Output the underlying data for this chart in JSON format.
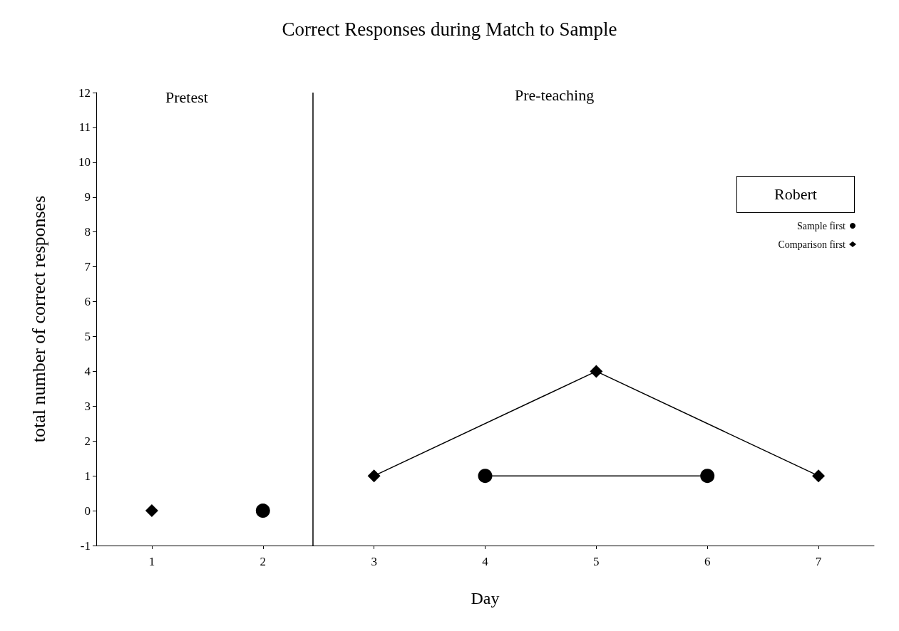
{
  "chart_data": {
    "type": "line",
    "title": "Correct Responses during Match to Sample",
    "xlabel": "Day",
    "ylabel": "total number of correct responses",
    "annotations": [
      "Pretest",
      "Pre-teaching",
      "Robert"
    ],
    "series": [
      {
        "name": "Sample first",
        "color": "#000000",
        "marker": "circle",
        "x": [
          2,
          3,
          4,
          6
        ],
        "values": [
          0,
          null,
          1,
          1
        ]
      },
      {
        "name": "Comparison first",
        "color": "#000000",
        "marker": "diamond",
        "x": [
          1,
          2,
          3,
          5,
          7
        ],
        "values": [
          0,
          null,
          1,
          4,
          1
        ]
      }
    ],
    "xlim": [
      0.5,
      7.5
    ],
    "xticks": [
      1,
      2,
      3,
      4,
      5,
      6,
      7
    ],
    "ylim": [
      -1,
      12
    ],
    "yticks": [
      -1,
      0,
      1,
      2,
      3,
      4,
      5,
      6,
      7,
      8,
      9,
      10,
      11,
      12
    ],
    "ref_lines": [
      {
        "axis": "x",
        "value": 2.45,
        "color": "#000000"
      }
    ],
    "grid": false,
    "legend": "right",
    "line_style": "solid"
  }
}
